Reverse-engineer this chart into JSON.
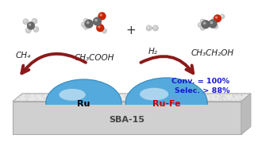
{
  "bg_color": "#ffffff",
  "support_label": "SBA-15",
  "support_label_color": "#444444",
  "support_label_fontsize": 8,
  "ru_label": "Ru",
  "ru_label_color": "#000000",
  "rufe_label": "Ru-Fe",
  "rufe_label_color": "#cc0000",
  "ch4_label": "CH₄",
  "ch3cooh_label": "CH₃COOH",
  "h2_label": "H₂",
  "ch3ch2oh_label": "CH₃CH₂OH",
  "plus_sign": "+",
  "arrow_color": "#8b1a1a",
  "conv_text": "Conv. = 100%",
  "selec_text": "Selec. > 88%",
  "annotation_color": "#1a1acc",
  "mol_carbon": "#666666",
  "mol_hydrogen": "#cccccc",
  "mol_oxygen": "#cc2200",
  "mol_bond": "#888888",
  "ru_blob_color": "#55aadd",
  "ru_blob_highlight": "#aaddff",
  "slab_top": "#e8e8e8",
  "slab_front": "#d0d0d0",
  "slab_right": "#bbbbbb",
  "slab_edge": "#aaaaaa"
}
